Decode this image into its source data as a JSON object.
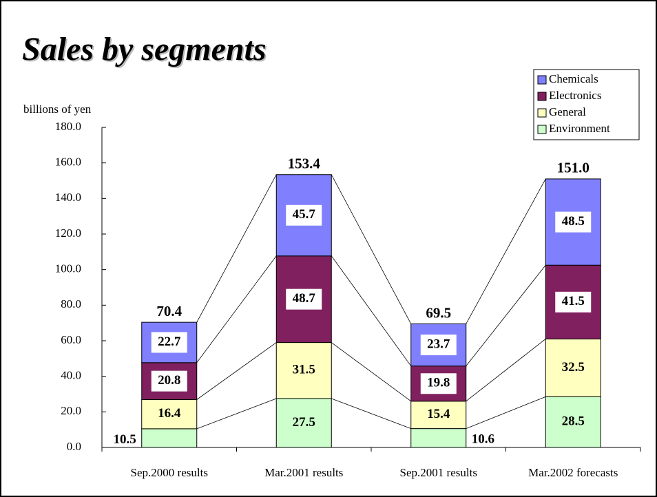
{
  "chart_data": {
    "type": "stacked_bar",
    "title": "Sales by segments",
    "y_label": "billions of yen",
    "categories": [
      "Sep.2000 results",
      "Mar.2001 results",
      "Sep.2001 results",
      "Mar.2002 forecasts"
    ],
    "series": [
      {
        "name": "Environment",
        "color": "#ccffcc",
        "values": [
          10.5,
          27.5,
          10.6,
          28.5
        ]
      },
      {
        "name": "General",
        "color": "#ffffc0",
        "values": [
          16.4,
          31.5,
          15.4,
          32.5
        ]
      },
      {
        "name": "Electronics",
        "color": "#80205f",
        "values": [
          20.8,
          48.7,
          19.8,
          41.5
        ]
      },
      {
        "name": "Chemicals",
        "color": "#8080ff",
        "values": [
          22.7,
          45.7,
          23.7,
          48.5
        ]
      }
    ],
    "totals": {
      "values": [
        70.4,
        153.4,
        69.5,
        151
      ],
      "value_labels": [
        "70.4",
        "153.4",
        "69.5",
        "151.0"
      ]
    },
    "ylim": [
      0,
      180
    ],
    "yticks": [
      {
        "value": 0,
        "label": "0.0"
      },
      {
        "value": 20,
        "label": "20.0"
      },
      {
        "value": 40,
        "label": "40.0"
      },
      {
        "value": 60,
        "label": "60.0"
      },
      {
        "value": 80,
        "label": "80.0"
      },
      {
        "value": 100,
        "label": "100.0"
      },
      {
        "value": 120,
        "label": "120.0"
      },
      {
        "value": 140,
        "label": "140.0"
      },
      {
        "value": 160,
        "label": "160.0"
      },
      {
        "value": 180,
        "label": "180.0"
      }
    ],
    "legend": "top-right"
  }
}
